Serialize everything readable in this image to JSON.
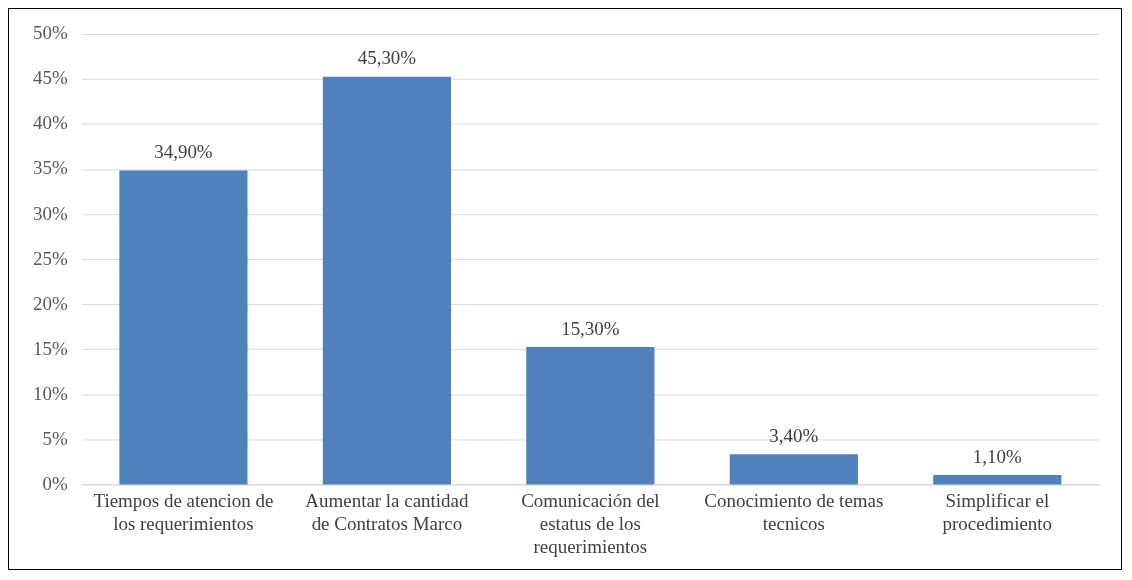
{
  "chart_data": {
    "type": "bar",
    "categories": [
      "Tiempos de atencion de los requerimientos",
      "Aumentar la cantidad de Contratos Marco",
      "Comunicación del estatus de los requerimientos",
      "Conocimiento de temas tecnicos",
      "Simplificar el procedimiento"
    ],
    "values": [
      34.9,
      45.3,
      15.3,
      3.4,
      1.1
    ],
    "value_labels": [
      "34,90%",
      "45,30%",
      "15,30%",
      "3,40%",
      "1,10%"
    ],
    "color": "#4f81bd",
    "ylim": [
      0,
      50
    ],
    "yticks": [
      {
        "value": 0,
        "label": "0%"
      },
      {
        "value": 5,
        "label": "5%"
      },
      {
        "value": 10,
        "label": "10%"
      },
      {
        "value": 15,
        "label": "15%"
      },
      {
        "value": 20,
        "label": "20%"
      },
      {
        "value": 25,
        "label": "25%"
      },
      {
        "value": 30,
        "label": "30%"
      },
      {
        "value": 35,
        "label": "35%"
      },
      {
        "value": 40,
        "label": "40%"
      },
      {
        "value": 45,
        "label": "45%"
      },
      {
        "value": 50,
        "label": "50%"
      }
    ],
    "grid": "y",
    "legend": false
  }
}
